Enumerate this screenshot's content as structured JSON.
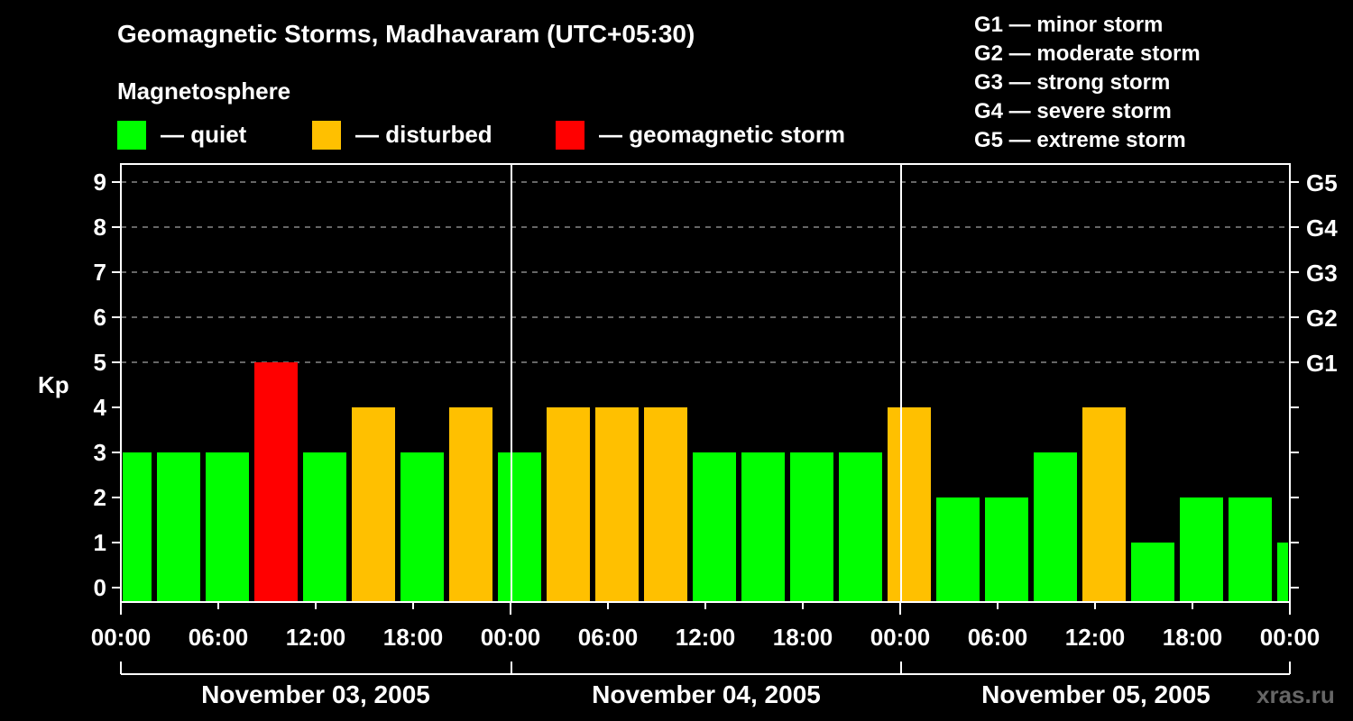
{
  "title": "Geomagnetic Storms, Madhavaram (UTC+05:30)",
  "legend_title": "Magnetosphere",
  "legend": [
    {
      "label": "— quiet",
      "color": "#00ff00"
    },
    {
      "label": "— disturbed",
      "color": "#ffc000"
    },
    {
      "label": "— geomagnetic storm",
      "color": "#ff0000"
    }
  ],
  "g_scale": [
    "G1 — minor storm",
    "G2 — moderate storm",
    "G3 — strong storm",
    "G4 — severe storm",
    "G5 — extreme storm"
  ],
  "ylabel": "Kp",
  "watermark": "xras.ru",
  "dates": [
    "November 03, 2005",
    "November 04, 2005",
    "November 05, 2005"
  ],
  "xticks": [
    "00:00",
    "06:00",
    "12:00",
    "18:00",
    "00:00",
    "06:00",
    "12:00",
    "18:00",
    "00:00",
    "06:00",
    "12:00",
    "18:00",
    "00:00"
  ],
  "chart_data": {
    "type": "bar",
    "title": "Geomagnetic Storms, Madhavaram (UTC+05:30)",
    "xlabel": "",
    "ylabel": "Kp",
    "ylim": [
      0,
      9
    ],
    "right_axis": {
      "5": "G1",
      "6": "G2",
      "7": "G3",
      "8": "G4",
      "9": "G5"
    },
    "categories": [
      "Nov03 00:00",
      "Nov03 03:00",
      "Nov03 06:00",
      "Nov03 09:00",
      "Nov03 12:00",
      "Nov03 15:00",
      "Nov03 18:00",
      "Nov03 21:00",
      "Nov04 00:00",
      "Nov04 03:00",
      "Nov04 06:00",
      "Nov04 09:00",
      "Nov04 12:00",
      "Nov04 15:00",
      "Nov04 18:00",
      "Nov04 21:00",
      "Nov05 00:00",
      "Nov05 03:00",
      "Nov05 06:00",
      "Nov05 09:00",
      "Nov05 12:00",
      "Nov05 15:00",
      "Nov05 18:00",
      "Nov05 21:00",
      "Nov06 00:00"
    ],
    "values": [
      3,
      3,
      3,
      5,
      3,
      4,
      3,
      4,
      3,
      4,
      4,
      4,
      3,
      3,
      3,
      3,
      4,
      2,
      2,
      3,
      4,
      1,
      2,
      2,
      1
    ]
  }
}
